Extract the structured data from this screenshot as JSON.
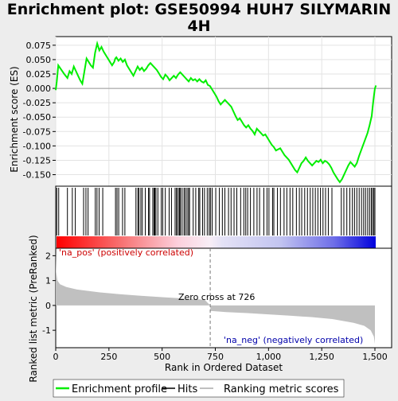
{
  "chart_data": {
    "type": "line",
    "title": "Enrichment plot: GSE50994 HUH7 SILYMARIN 4H",
    "title_lines": [
      "Enrichment plot: GSE50994 HUH7 SILYMARIN",
      "4H"
    ],
    "enrichment_panel": {
      "ylabel": "Enrichment score (ES)",
      "ylim": [
        -0.17,
        0.09
      ],
      "yticks": [
        -0.15,
        -0.125,
        -0.1,
        -0.075,
        -0.05,
        -0.025,
        0.0,
        0.025,
        0.05,
        0.075
      ],
      "ytick_labels": [
        "-0.150",
        "-0.125",
        "-0.100",
        "-0.075",
        "-0.050",
        "-0.025",
        "0.000",
        "0.025",
        "0.050",
        "0.075"
      ],
      "xlim": [
        0,
        1500
      ],
      "series": [
        {
          "name": "Enrichment profile",
          "color": "#00ee00",
          "x": [
            0,
            5,
            12,
            25,
            40,
            55,
            65,
            75,
            85,
            95,
            105,
            115,
            125,
            135,
            145,
            155,
            165,
            175,
            185,
            190,
            195,
            200,
            205,
            215,
            225,
            235,
            245,
            255,
            265,
            275,
            280,
            285,
            295,
            305,
            315,
            325,
            335,
            345,
            355,
            365,
            375,
            385,
            395,
            405,
            415,
            425,
            435,
            445,
            455,
            465,
            475,
            485,
            495,
            505,
            515,
            525,
            535,
            545,
            555,
            565,
            575,
            585,
            595,
            605,
            615,
            625,
            635,
            645,
            655,
            665,
            675,
            685,
            695,
            705,
            715,
            725,
            735,
            745,
            755,
            765,
            775,
            785,
            795,
            805,
            815,
            825,
            835,
            845,
            855,
            865,
            875,
            885,
            895,
            905,
            915,
            925,
            935,
            945,
            955,
            965,
            975,
            985,
            995,
            1005,
            1015,
            1025,
            1035,
            1045,
            1055,
            1065,
            1075,
            1085,
            1095,
            1105,
            1115,
            1125,
            1135,
            1145,
            1155,
            1165,
            1175,
            1185,
            1195,
            1205,
            1215,
            1225,
            1235,
            1245,
            1255,
            1265,
            1275,
            1285,
            1295,
            1305,
            1315,
            1325,
            1335,
            1345,
            1355,
            1365,
            1375,
            1385,
            1395,
            1405,
            1415,
            1425,
            1435,
            1445,
            1455,
            1465,
            1475,
            1485,
            1490,
            1495,
            1500,
            1505
          ],
          "y": [
            -0.003,
            0.012,
            0.04,
            0.033,
            0.025,
            0.018,
            0.03,
            0.025,
            0.038,
            0.03,
            0.022,
            0.014,
            0.008,
            0.03,
            0.052,
            0.046,
            0.04,
            0.036,
            0.062,
            0.07,
            0.078,
            0.072,
            0.066,
            0.072,
            0.064,
            0.058,
            0.052,
            0.046,
            0.04,
            0.046,
            0.052,
            0.054,
            0.048,
            0.052,
            0.046,
            0.05,
            0.04,
            0.034,
            0.028,
            0.022,
            0.03,
            0.038,
            0.032,
            0.036,
            0.03,
            0.034,
            0.04,
            0.044,
            0.04,
            0.036,
            0.032,
            0.026,
            0.02,
            0.016,
            0.024,
            0.02,
            0.014,
            0.018,
            0.022,
            0.018,
            0.024,
            0.028,
            0.024,
            0.02,
            0.016,
            0.012,
            0.018,
            0.014,
            0.016,
            0.012,
            0.016,
            0.012,
            0.01,
            0.014,
            0.006,
            0.004,
            -0.002,
            -0.008,
            -0.014,
            -0.022,
            -0.028,
            -0.024,
            -0.02,
            -0.024,
            -0.028,
            -0.032,
            -0.04,
            -0.048,
            -0.055,
            -0.052,
            -0.058,
            -0.064,
            -0.068,
            -0.064,
            -0.07,
            -0.074,
            -0.08,
            -0.07,
            -0.074,
            -0.078,
            -0.082,
            -0.08,
            -0.086,
            -0.092,
            -0.098,
            -0.102,
            -0.108,
            -0.106,
            -0.104,
            -0.11,
            -0.116,
            -0.12,
            -0.124,
            -0.13,
            -0.136,
            -0.142,
            -0.146,
            -0.138,
            -0.13,
            -0.126,
            -0.12,
            -0.126,
            -0.13,
            -0.134,
            -0.13,
            -0.126,
            -0.128,
            -0.124,
            -0.13,
            -0.126,
            -0.128,
            -0.132,
            -0.138,
            -0.146,
            -0.152,
            -0.158,
            -0.163,
            -0.158,
            -0.15,
            -0.142,
            -0.134,
            -0.128,
            -0.132,
            -0.136,
            -0.13,
            -0.118,
            -0.108,
            -0.098,
            -0.088,
            -0.078,
            -0.064,
            -0.048,
            -0.03,
            -0.014,
            0.0,
            0.005
          ]
        }
      ]
    },
    "hits_panel": {
      "hit_positions": [
        5,
        14,
        55,
        78,
        92,
        131,
        142,
        152,
        186,
        194,
        204,
        221,
        281,
        288,
        296,
        314,
        325,
        377,
        386,
        391,
        400,
        407,
        421,
        436,
        441,
        456,
        462,
        466,
        471,
        480,
        496,
        503,
        515,
        533,
        544,
        561,
        568,
        571,
        579,
        583,
        586,
        594,
        603,
        609,
        617,
        624,
        629,
        646,
        658,
        672,
        677,
        690,
        699,
        712,
        721,
        727,
        735,
        752,
        769,
        783,
        795,
        812,
        824,
        838,
        851,
        869,
        884,
        893,
        902,
        915,
        931,
        946,
        958,
        978,
        993,
        1002,
        1019,
        1025,
        1042,
        1056,
        1073,
        1086,
        1101,
        1114,
        1131,
        1145,
        1156,
        1170,
        1183,
        1196,
        1208,
        1220,
        1232,
        1244,
        1256,
        1268,
        1281,
        1298,
        1342,
        1354,
        1368,
        1382,
        1394,
        1404,
        1415,
        1426,
        1437,
        1447,
        1456,
        1466,
        1475,
        1483,
        1489,
        1495,
        1500
      ]
    },
    "ranking_panel": {
      "ylabel": "Ranked list metric (PreRanked)",
      "xlabel": "Rank in Ordered Dataset",
      "ylim": [
        -1.7,
        2.3
      ],
      "yticks": [
        -1,
        0,
        1,
        2
      ],
      "ytick_labels": [
        "-1",
        "0",
        "1",
        "2"
      ],
      "xticks": [
        0,
        250,
        500,
        750,
        1000,
        1250,
        1500
      ],
      "xtick_labels": [
        "0",
        "250",
        "500",
        "750",
        "1,000",
        "1,250",
        "1,500"
      ],
      "zero_cross": 726,
      "zero_cross_label": "Zero cross at 726",
      "pos_label": "'na_pos' (positively correlated)",
      "neg_label": "'na_neg' (negatively correlated)",
      "metric_profile": [
        {
          "rank": 0,
          "value": 2.15
        },
        {
          "rank": 2,
          "value": 1.35
        },
        {
          "rank": 8,
          "value": 1.0
        },
        {
          "rank": 20,
          "value": 0.85
        },
        {
          "rank": 50,
          "value": 0.74
        },
        {
          "rank": 100,
          "value": 0.64
        },
        {
          "rank": 200,
          "value": 0.53
        },
        {
          "rank": 300,
          "value": 0.45
        },
        {
          "rank": 400,
          "value": 0.39
        },
        {
          "rank": 500,
          "value": 0.33
        },
        {
          "rank": 600,
          "value": 0.28
        },
        {
          "rank": 700,
          "value": 0.23
        },
        {
          "rank": 726,
          "value": 0.0
        },
        {
          "rank": 727,
          "value": -0.22
        },
        {
          "rank": 800,
          "value": -0.27
        },
        {
          "rank": 900,
          "value": -0.31
        },
        {
          "rank": 1000,
          "value": -0.36
        },
        {
          "rank": 1100,
          "value": -0.41
        },
        {
          "rank": 1200,
          "value": -0.47
        },
        {
          "rank": 1300,
          "value": -0.55
        },
        {
          "rank": 1400,
          "value": -0.7
        },
        {
          "rank": 1450,
          "value": -0.82
        },
        {
          "rank": 1480,
          "value": -1.0
        },
        {
          "rank": 1495,
          "value": -1.25
        },
        {
          "rank": 1500,
          "value": -1.55
        }
      ]
    },
    "legend": {
      "items": [
        {
          "name": "Enrichment profile",
          "color": "#00ee00"
        },
        {
          "name": "Hits",
          "color": "#000000"
        },
        {
          "name": "Ranking metric scores",
          "color": "#c0c0c0"
        }
      ]
    }
  }
}
